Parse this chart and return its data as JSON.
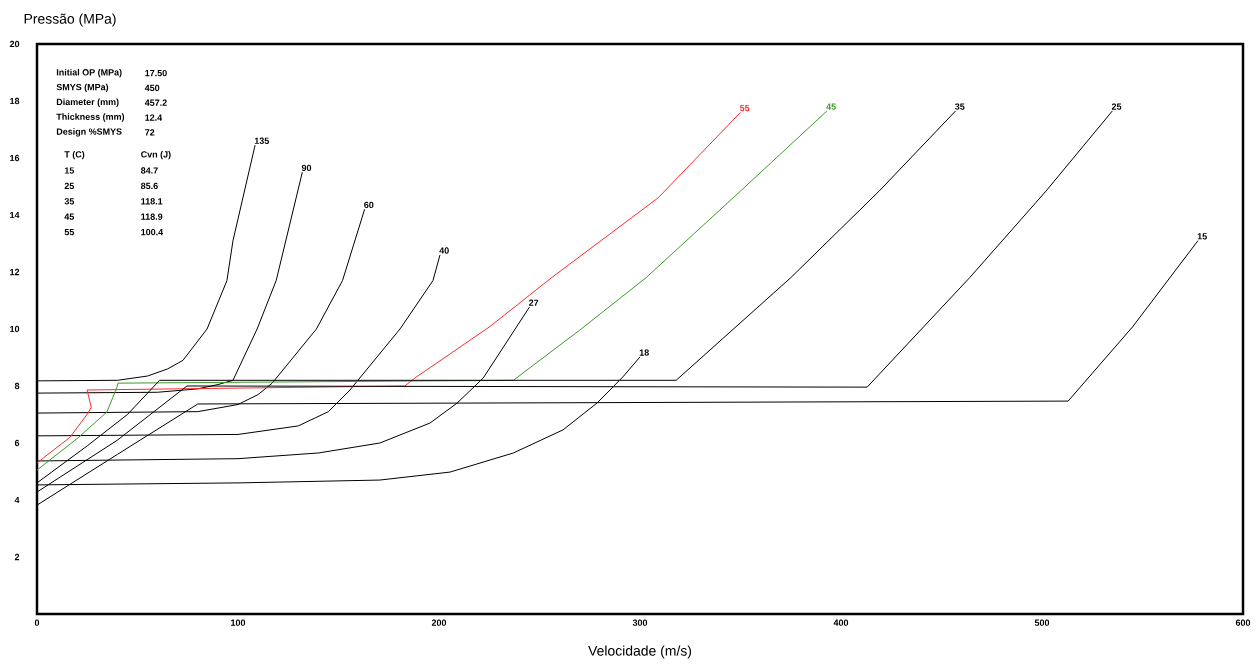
{
  "chart_data": {
    "type": "line",
    "xlabel": "Velocidade (m/s)",
    "ylabel": "Pressão (MPa)",
    "xlim": [
      0,
      600
    ],
    "ylim": [
      0,
      20
    ],
    "xticks": [
      0,
      100,
      200,
      300,
      400,
      500,
      600
    ],
    "yticks": [
      2,
      4,
      6,
      8,
      10,
      12,
      14,
      16,
      18,
      20
    ],
    "marker": "none",
    "line_style": "solid",
    "annotations": [
      "Initial OP (MPa)",
      "17.50",
      "SMYS (MPa)",
      "450",
      "Diameter (mm)",
      "457.2",
      "Thickness (mm)",
      "12.4",
      "Design %SMYS",
      "72",
      "T (C)",
      "Cvn (J)",
      "15",
      "84.7",
      "25",
      "85.6",
      "35",
      "118.1",
      "45",
      "118.9",
      "55",
      "100.4"
    ],
    "series": [
      {
        "name": "135",
        "color": "#000000",
        "x": [
          0,
          40,
          55,
          65,
          72.6,
          84.6,
          94.5,
          97.5,
          108.5
        ],
        "values": [
          8.18,
          8.2,
          8.35,
          8.6,
          8.9,
          10,
          11.7,
          13.1,
          16.45
        ]
      },
      {
        "name": "90",
        "color": "#000000",
        "x": [
          0,
          60,
          80,
          90,
          97.5,
          109.5,
          119,
          132
        ],
        "values": [
          7.75,
          7.78,
          7.9,
          8.05,
          8.2,
          10,
          11.7,
          15.5
        ]
      },
      {
        "name": "60",
        "color": "#000000",
        "x": [
          0,
          80,
          100,
          110,
          117,
          139,
          152,
          163
        ],
        "values": [
          7.05,
          7.1,
          7.35,
          7.7,
          8.1,
          10,
          11.7,
          14.2
        ]
      },
      {
        "name": "40",
        "color": "#000000",
        "x": [
          0,
          100,
          130,
          145,
          155.7,
          180.6,
          197,
          200.5
        ],
        "values": [
          6.25,
          6.3,
          6.6,
          7.1,
          7.86,
          10,
          11.7,
          12.6
        ]
      },
      {
        "name": "27",
        "color": "#000000",
        "x": [
          0,
          100,
          140,
          170.6,
          195.5,
          209,
          222,
          245
        ],
        "values": [
          5.37,
          5.45,
          5.65,
          6.0,
          6.7,
          7.4,
          8.28,
          10.77
        ]
      },
      {
        "name": "18",
        "color": "#000000",
        "x": [
          0,
          100,
          170.6,
          205.5,
          237,
          261.7,
          278.6,
          291.5,
          300
        ],
        "values": [
          4.53,
          4.6,
          4.7,
          4.98,
          5.65,
          6.46,
          7.4,
          8.32,
          9.02
        ]
      },
      {
        "name": "55",
        "color": "#ff2a2a",
        "x": [
          0,
          16.4,
          25.4,
          27,
          24.9,
          183,
          188,
          225,
          256,
          309,
          350
        ],
        "values": [
          5.3,
          6.2,
          7.05,
          7.26,
          7.86,
          8.0,
          8.28,
          10.07,
          11.8,
          14.6,
          17.6
        ]
      },
      {
        "name": "45",
        "color": "#3c9a2a",
        "x": [
          0,
          20.4,
          34.8,
          39.8,
          40.3,
          237,
          270,
          303,
          350,
          393
        ],
        "values": [
          5.05,
          6.18,
          7.09,
          7.96,
          8.1,
          8.2,
          9.96,
          11.8,
          14.84,
          17.65
        ]
      },
      {
        "name": "35",
        "color": "#000000",
        "x": [
          0,
          25,
          45,
          61,
          318,
          375,
          419,
          457
        ],
        "values": [
          4.6,
          5.9,
          7.0,
          8.2,
          8.2,
          11.8,
          14.84,
          17.65
        ]
      },
      {
        "name": "25",
        "color": "#000000",
        "x": [
          0,
          40,
          74.6,
          413,
          464,
          502,
          535
        ],
        "values": [
          4.28,
          6.1,
          8.0,
          7.96,
          11.8,
          14.84,
          17.65
        ]
      },
      {
        "name": "15",
        "color": "#000000",
        "x": [
          0,
          40,
          80,
          513,
          545,
          577.6
        ],
        "values": [
          3.82,
          5.6,
          7.37,
          7.47,
          10.07,
          13.1
        ]
      }
    ]
  }
}
